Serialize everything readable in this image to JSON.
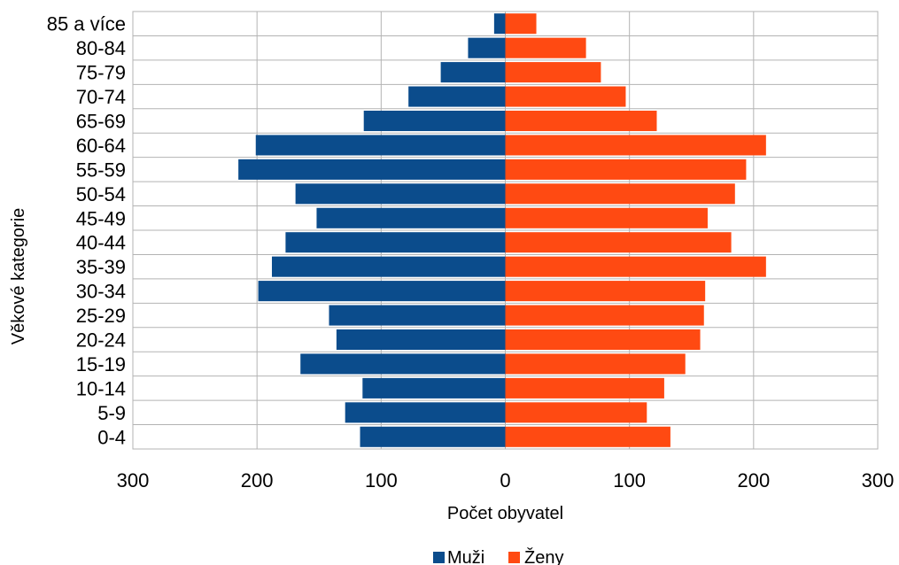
{
  "chart_data": {
    "type": "bar",
    "orientation": "horizontal",
    "subtype": "population-pyramid",
    "title": "",
    "xlabel": "Počet obyvatel",
    "ylabel": "Věkové kategorie",
    "xlim": [
      -300,
      300
    ],
    "x_ticks": [
      -300,
      -200,
      -100,
      0,
      100,
      200,
      300
    ],
    "x_tick_labels": [
      "300",
      "200",
      "100",
      "0",
      "100",
      "200",
      "300"
    ],
    "grid": true,
    "legend_position": "bottom",
    "categories": [
      "0-4",
      "5-9",
      "10-14",
      "15-19",
      "20-24",
      "25-29",
      "30-34",
      "35-39",
      "40-44",
      "45-49",
      "50-54",
      "55-59",
      "60-64",
      "65-69",
      "70-74",
      "75-79",
      "80-84",
      "85 a více"
    ],
    "series": [
      {
        "name": "Muži",
        "color": "#0B4C8C",
        "values": [
          -117,
          -129,
          -115,
          -165,
          -136,
          -142,
          -199,
          -188,
          -177,
          -152,
          -169,
          -215,
          -201,
          -114,
          -78,
          -52,
          -30,
          -9
        ]
      },
      {
        "name": "Ženy",
        "color": "#FF4A12",
        "values": [
          133,
          114,
          128,
          145,
          157,
          160,
          161,
          210,
          182,
          163,
          185,
          194,
          210,
          122,
          97,
          77,
          65,
          25
        ]
      }
    ]
  }
}
